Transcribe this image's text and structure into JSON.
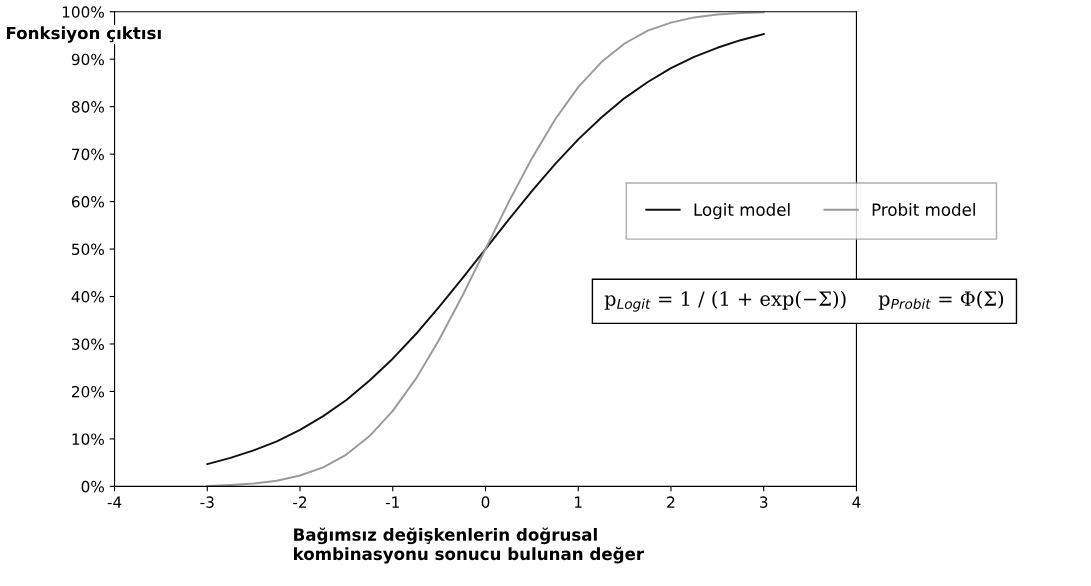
{
  "chart_data": {
    "type": "line",
    "ylabel": "Fonksiyon çıktısı",
    "xlabel": "Bağımsız değişkenlerin doğrusal\nkombinasyonu sonucu bulunan değer",
    "x": [
      -3,
      -2.75,
      -2.5,
      -2.25,
      -2,
      -1.75,
      -1.5,
      -1.25,
      -1,
      -0.75,
      -0.5,
      -0.25,
      0,
      0.25,
      0.5,
      0.75,
      1,
      1.25,
      1.5,
      1.75,
      2,
      2.25,
      2.5,
      2.75,
      3
    ],
    "series": [
      {
        "name": "Logit model",
        "color": "#111111",
        "values": [
          4.7,
          6.0,
          7.6,
          9.5,
          11.9,
          14.8,
          18.2,
          22.3,
          26.9,
          32.1,
          37.8,
          43.8,
          50,
          56.2,
          62.2,
          67.9,
          73.1,
          77.7,
          81.8,
          85.2,
          88.1,
          90.5,
          92.4,
          94.0,
          95.3
        ]
      },
      {
        "name": "Probit model",
        "color": "#9a9a9a",
        "values": [
          0.1,
          0.3,
          0.6,
          1.2,
          2.3,
          4.0,
          6.7,
          10.6,
          15.9,
          22.7,
          30.9,
          40.1,
          50,
          59.9,
          69.1,
          77.3,
          84.1,
          89.4,
          93.3,
          96.0,
          97.7,
          98.8,
          99.4,
          99.7,
          99.9
        ]
      }
    ],
    "xlim": [
      -4,
      4
    ],
    "xticks": [
      -4,
      -3,
      -2,
      -1,
      0,
      1,
      2,
      3,
      4
    ],
    "ylim": [
      0,
      100
    ],
    "yticks": [
      {
        "value": 0,
        "label": "0%"
      },
      {
        "value": 10,
        "label": "10%"
      },
      {
        "value": 20,
        "label": "20%"
      },
      {
        "value": 30,
        "label": "30%"
      },
      {
        "value": 40,
        "label": "40%"
      },
      {
        "value": 50,
        "label": "50%"
      },
      {
        "value": 60,
        "label": "60%"
      },
      {
        "value": 70,
        "label": "70%"
      },
      {
        "value": 80,
        "label": "80%"
      },
      {
        "value": 90,
        "label": "90%"
      },
      {
        "value": 100,
        "label": "100%"
      }
    ],
    "annotations": [
      "p$_{Logit}$ = 1 / (1 + exp(−Σ))     p$_{Probit}$ = Φ(Σ)"
    ],
    "grid": false,
    "legend": "right",
    "marker": "none",
    "line_style": "solid"
  }
}
